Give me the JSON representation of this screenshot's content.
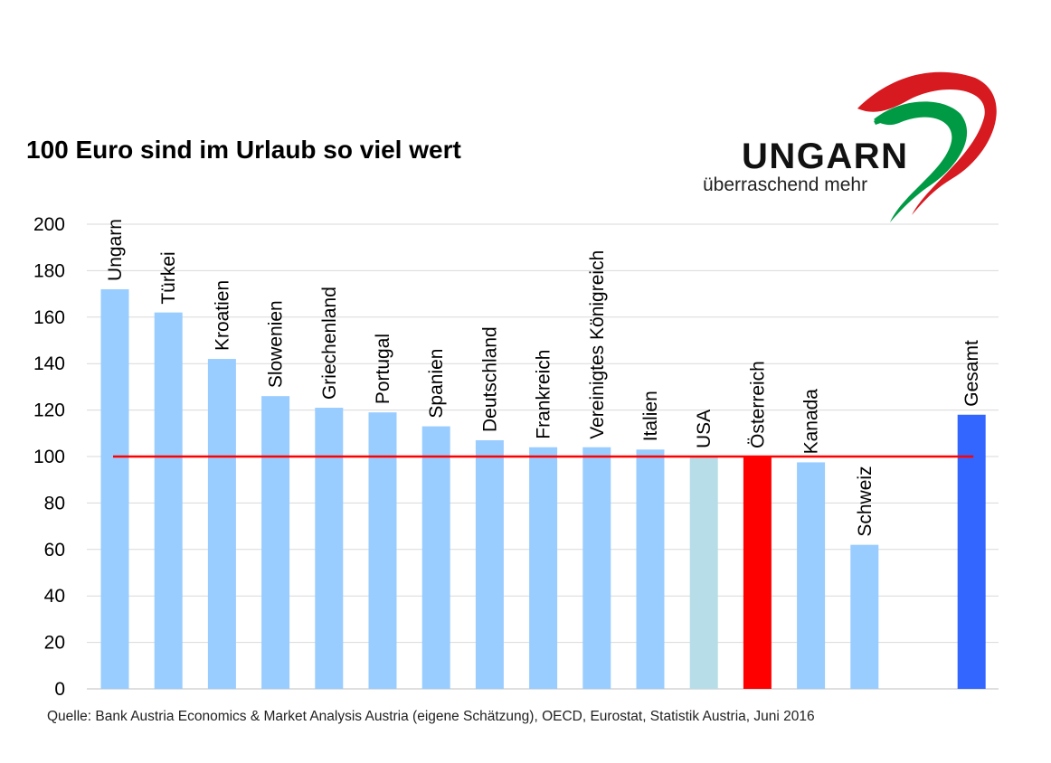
{
  "colors": {
    "bar_default": "#99CCFF",
    "bar_usa": "#B7DDE8",
    "bar_oesterreich": "#FF0000",
    "bar_gesamt": "#3366FF",
    "reference_line": "#FF0000",
    "grid": "#D9D9D9",
    "logo_red": "#D71920",
    "logo_green": "#009A44"
  },
  "logo": {
    "word": "UNGARN",
    "tagline": "überraschend mehr",
    "icon": "heart-ribbon-icon"
  },
  "source": "Quelle: Bank Austria Economics & Market Analysis Austria (eigene Schätzung), OECD, Eurostat, Statistik Austria, Juni 2016",
  "chart_data": {
    "type": "bar",
    "title": "100 Euro sind im Urlaub so viel wert",
    "xlabel": "",
    "ylabel": "",
    "ylim": [
      0,
      200
    ],
    "yticks": [
      0,
      20,
      40,
      60,
      80,
      100,
      120,
      140,
      160,
      180,
      200
    ],
    "grid": true,
    "reference_line": 100,
    "categories": [
      "Ungarn",
      "Türkei",
      "Kroatien",
      "Slowenien",
      "Griechenland",
      "Portugal",
      "Spanien",
      "Deutschland",
      "Frankreich",
      "Vereinigtes Königreich",
      "Italien",
      "USA",
      "Österreich",
      "Kanada",
      "Schweiz",
      "",
      "Gesamt"
    ],
    "values": [
      172,
      162,
      142,
      126,
      121,
      119,
      113,
      107,
      104,
      104,
      103,
      100,
      100,
      97.5,
      62,
      null,
      118
    ],
    "bar_colors": [
      "bar_default",
      "bar_default",
      "bar_default",
      "bar_default",
      "bar_default",
      "bar_default",
      "bar_default",
      "bar_default",
      "bar_default",
      "bar_default",
      "bar_default",
      "bar_usa",
      "bar_oesterreich",
      "bar_default",
      "bar_default",
      null,
      "bar_gesamt"
    ]
  }
}
